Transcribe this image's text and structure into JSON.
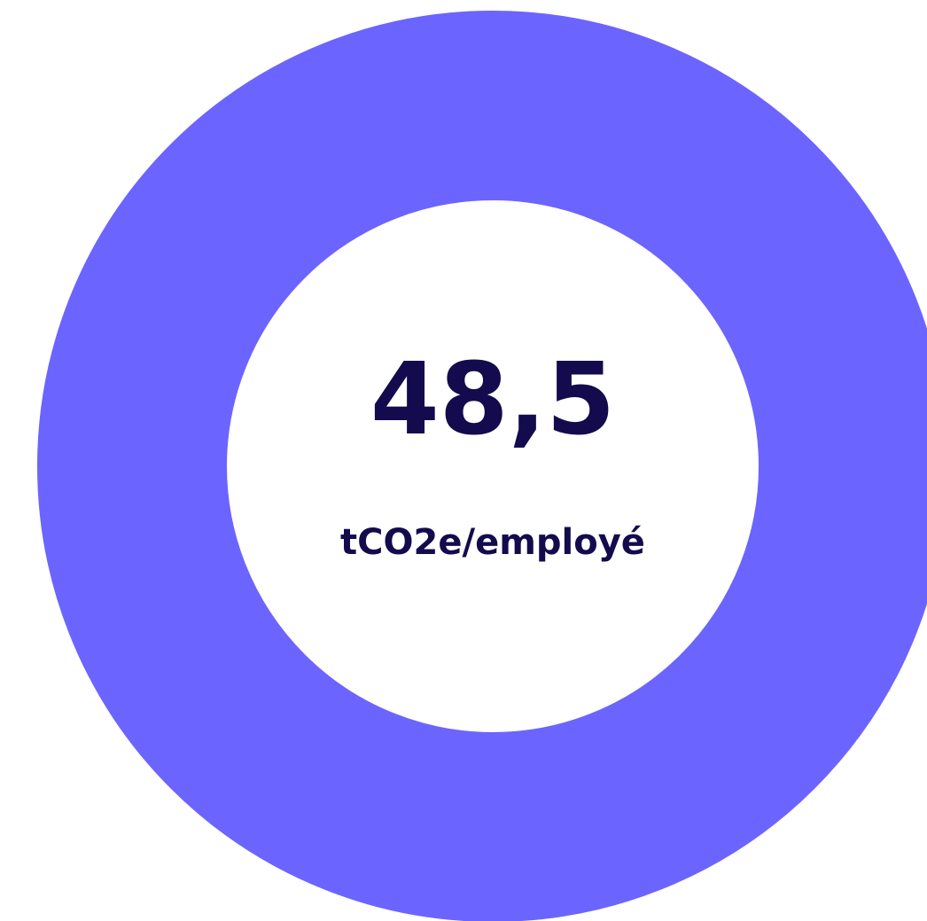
{
  "kpi": {
    "value": "48,5",
    "unit": "tCO2e/employé"
  }
}
